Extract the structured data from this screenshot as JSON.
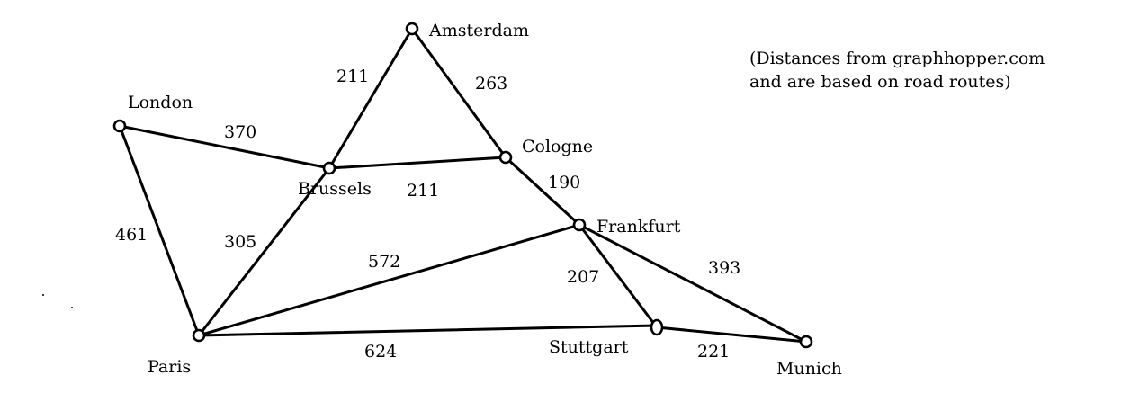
{
  "note": {
    "line1": "(Distances from graphhopper.com",
    "line2": "and are based on road routes)"
  },
  "cities": {
    "amsterdam": "Amsterdam",
    "london": "London",
    "brussels": "Brussels",
    "cologne": "Cologne",
    "frankfurt": "Frankfurt",
    "paris": "Paris",
    "stuttgart": "Stuttgart",
    "munich": "Munich"
  },
  "edges": [
    {
      "id": "london-brussels",
      "from": "London",
      "to": "Brussels",
      "distance": "370"
    },
    {
      "id": "london-paris",
      "from": "London",
      "to": "Paris",
      "distance": "461"
    },
    {
      "id": "amsterdam-brussels",
      "from": "Amsterdam",
      "to": "Brussels",
      "distance": "211"
    },
    {
      "id": "amsterdam-cologne",
      "from": "Amsterdam",
      "to": "Cologne",
      "distance": "263"
    },
    {
      "id": "brussels-cologne",
      "from": "Brussels",
      "to": "Cologne",
      "distance": "211"
    },
    {
      "id": "brussels-paris",
      "from": "Brussels",
      "to": "Paris",
      "distance": "305"
    },
    {
      "id": "cologne-frankfurt",
      "from": "Cologne",
      "to": "Frankfurt",
      "distance": "190"
    },
    {
      "id": "paris-frankfurt",
      "from": "Paris",
      "to": "Frankfurt",
      "distance": "572"
    },
    {
      "id": "frankfurt-stuttgart",
      "from": "Frankfurt",
      "to": "Stuttgart",
      "distance": "207"
    },
    {
      "id": "frankfurt-munich",
      "from": "Frankfurt",
      "to": "Munich",
      "distance": "393"
    },
    {
      "id": "paris-stuttgart",
      "from": "Paris",
      "to": "Stuttgart",
      "distance": "624"
    },
    {
      "id": "stuttgart-munich",
      "from": "Stuttgart",
      "to": "Munich",
      "distance": "221"
    }
  ]
}
